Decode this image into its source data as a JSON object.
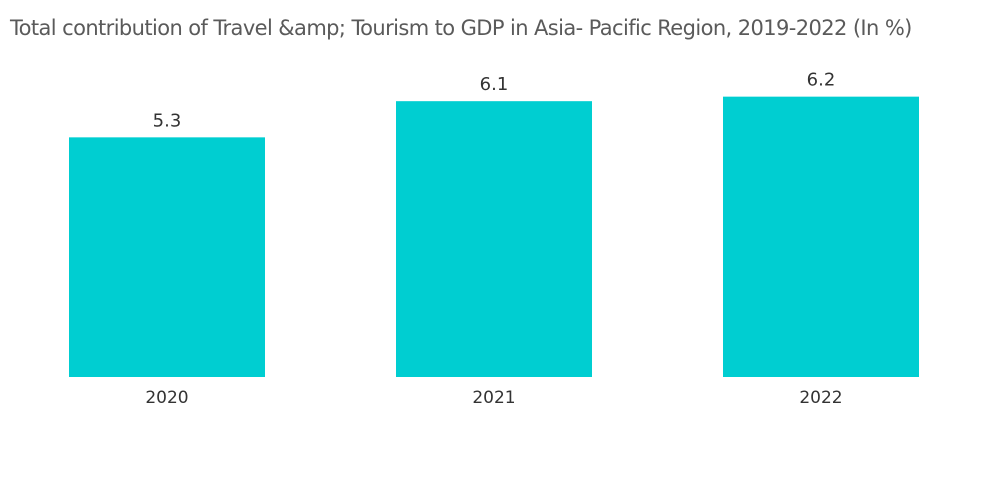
{
  "chart_data": {
    "type": "bar",
    "title": "Total contribution of Travel &amp; Tourism to GDP in Asia- Pacific Region, 2019-2022 (In %)",
    "categories": [
      "2020",
      "2021",
      "2022"
    ],
    "values": [
      5.3,
      6.1,
      6.2
    ],
    "value_labels": [
      "5.3",
      "6.1",
      "6.2"
    ],
    "bar_color": "#00CED1",
    "xlabel": "",
    "ylabel": "",
    "ylim": [
      0,
      6.9
    ],
    "grid": false,
    "legend": "none"
  }
}
